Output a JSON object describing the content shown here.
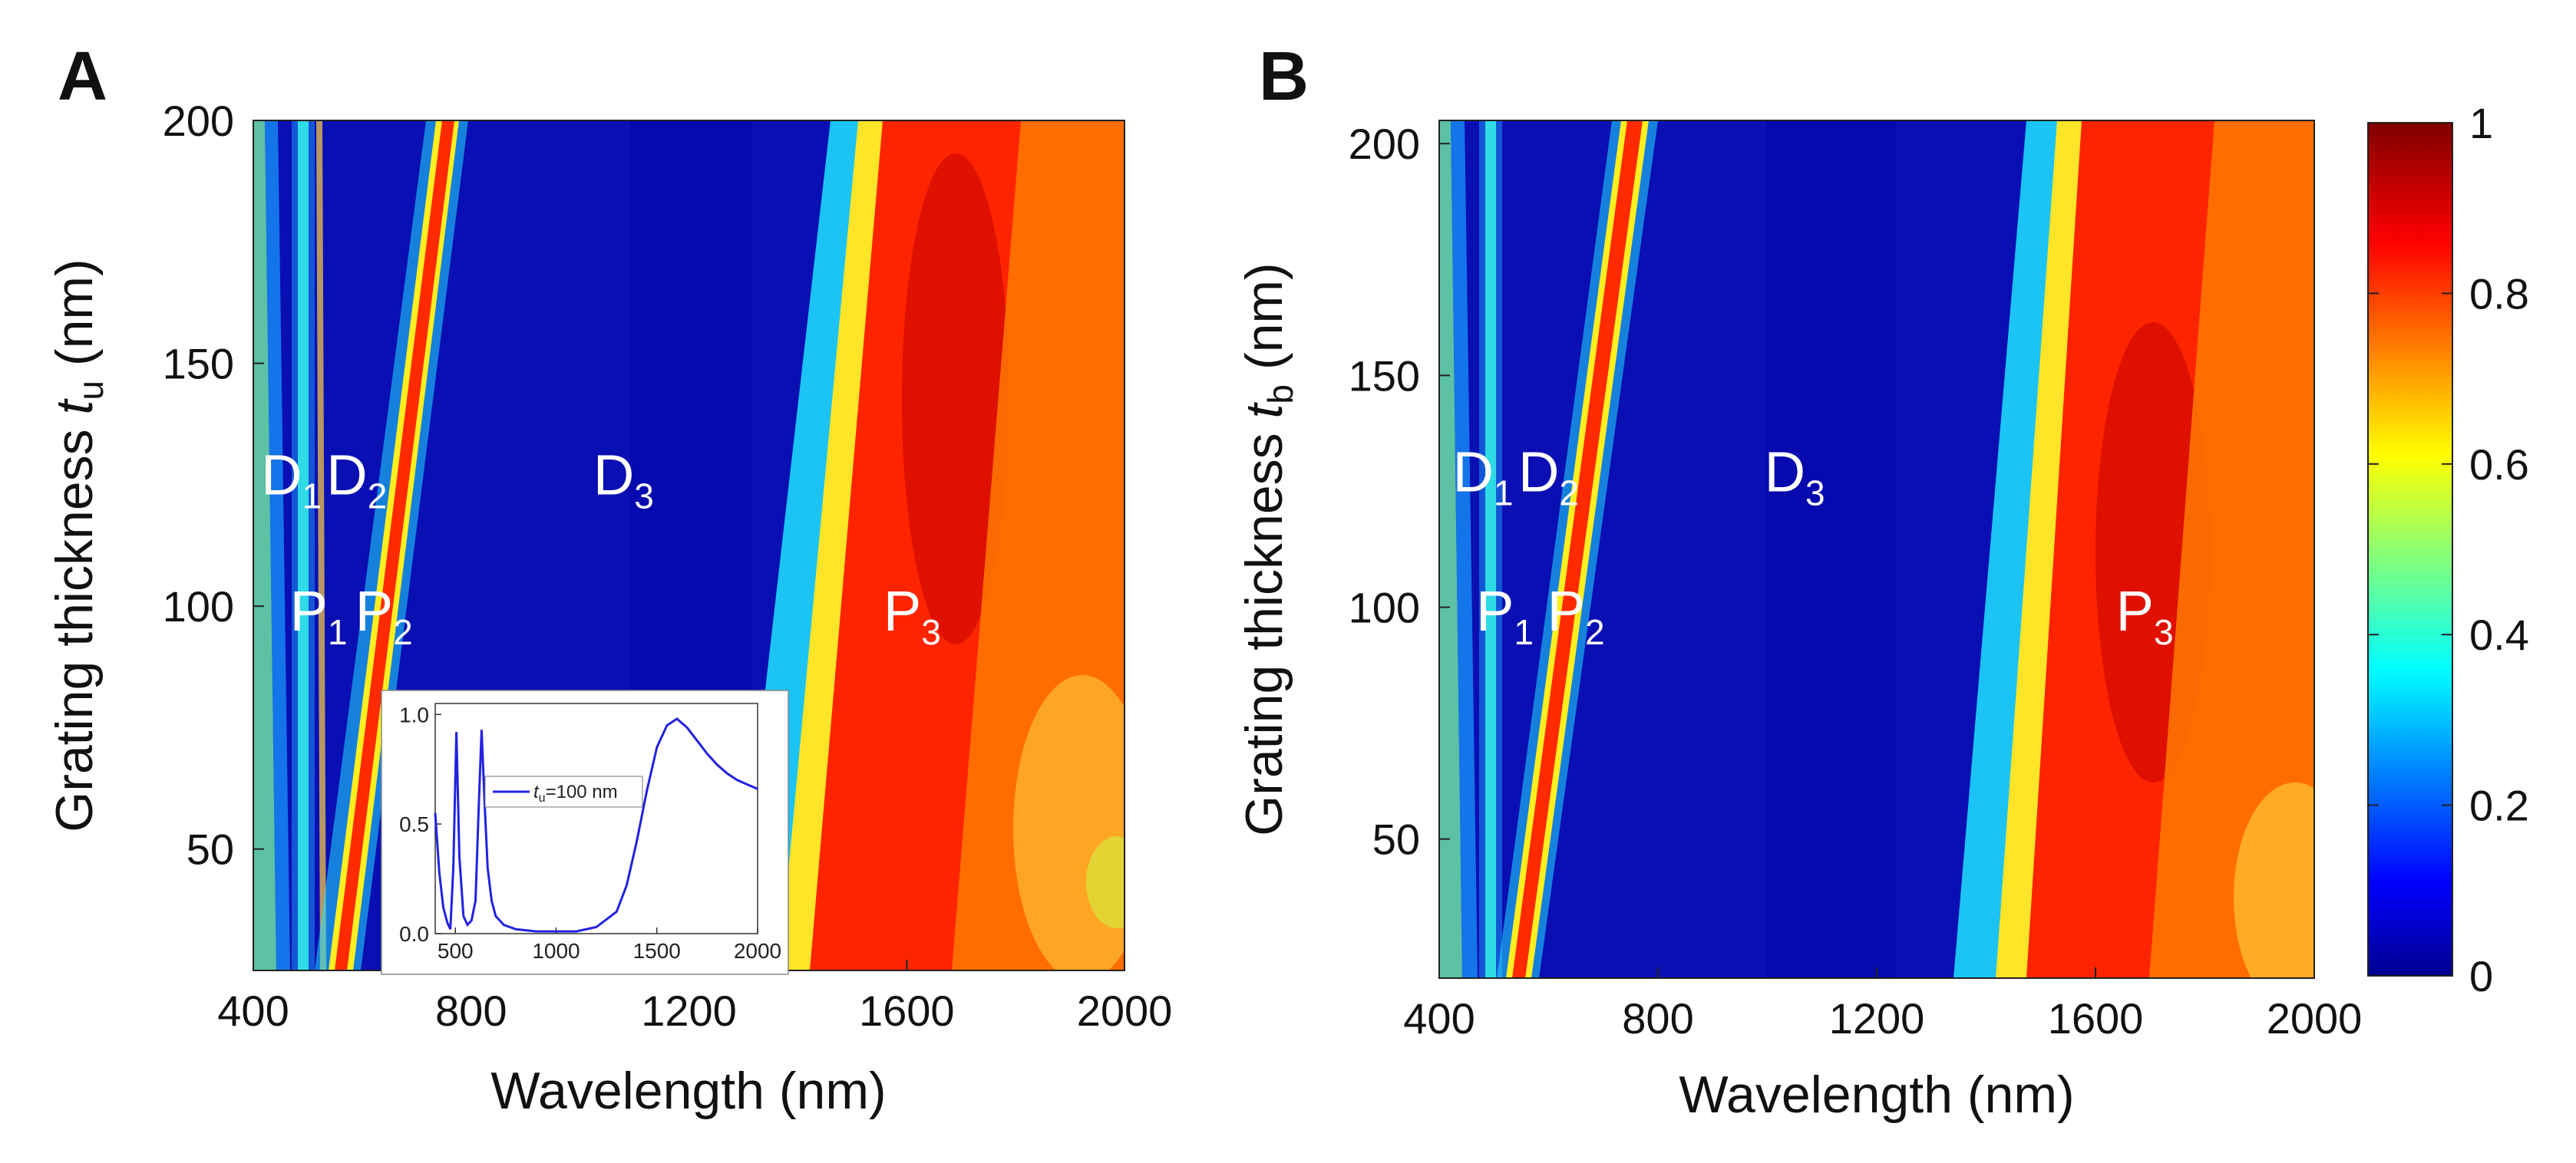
{
  "figure": {
    "panels": [
      "A",
      "B"
    ]
  },
  "colorbar": {
    "ticks": [
      "1",
      "0.8",
      "0.6",
      "0.4",
      "0.2",
      "0"
    ],
    "range": [
      0,
      1
    ],
    "colors": [
      "#00008f",
      "#0000ff",
      "#00ffff",
      "#ffff00",
      "#ff0000",
      "#800000"
    ]
  },
  "chart_data": [
    {
      "type": "heatmap",
      "panel": "A",
      "xlabel": "Wavelength (nm)",
      "ylabel_prefix": "Grating thickness ",
      "ylabel_var": "t",
      "ylabel_sub": "u",
      "ylabel_suffix": " (nm)",
      "xlim": [
        400,
        2000
      ],
      "ylim": [
        25,
        200
      ],
      "xticks": [
        "400",
        "800",
        "1200",
        "1600",
        "2000"
      ],
      "yticks": [
        "200",
        "150",
        "100",
        "50"
      ],
      "ytick_values": [
        200,
        150,
        100,
        50
      ],
      "xtick_values": [
        400,
        800,
        1200,
        1600,
        2000
      ],
      "annotations": [
        {
          "base": "D",
          "sub": "1",
          "x": 470,
          "y": 123
        },
        {
          "base": "D",
          "sub": "2",
          "x": 590,
          "y": 123
        },
        {
          "base": "D",
          "sub": "3",
          "x": 1080,
          "y": 123
        },
        {
          "base": "P",
          "sub": "1",
          "x": 520,
          "y": 95
        },
        {
          "base": "P",
          "sub": "2",
          "x": 640,
          "y": 95
        },
        {
          "base": "P",
          "sub": "3",
          "x": 1610,
          "y": 95
        }
      ],
      "ridges": {
        "edge_band_nm": 420,
        "d1_nm": 480,
        "p2_bottom_nm": 560,
        "p2_top_nm": 770,
        "p3_bottom_edge_nm": 1400,
        "p3_top_edge_nm": 1530
      },
      "inset": {
        "type": "line",
        "legend_prefix": "t",
        "legend_sub": "u",
        "legend_suffix": "=100 nm",
        "xlim": [
          400,
          2000
        ],
        "ylim": [
          0,
          1.05
        ],
        "xticks": [
          "500",
          "1000",
          "1500",
          "2000"
        ],
        "xtick_values": [
          500,
          1000,
          1500,
          2000
        ],
        "yticks": [
          "1.0",
          "0.5",
          "0.0"
        ],
        "ytick_values": [
          1.0,
          0.5,
          0.0
        ],
        "x": [
          400,
          420,
          440,
          460,
          475,
          490,
          505,
          520,
          540,
          560,
          580,
          600,
          615,
          630,
          645,
          660,
          680,
          700,
          740,
          800,
          900,
          1000,
          1100,
          1200,
          1300,
          1350,
          1400,
          1450,
          1500,
          1550,
          1600,
          1650,
          1700,
          1750,
          1800,
          1850,
          1900,
          1950,
          2000
        ],
        "y": [
          0.55,
          0.28,
          0.12,
          0.05,
          0.02,
          0.3,
          0.92,
          0.35,
          0.08,
          0.04,
          0.06,
          0.15,
          0.55,
          0.93,
          0.6,
          0.3,
          0.15,
          0.08,
          0.04,
          0.02,
          0.01,
          0.01,
          0.01,
          0.03,
          0.1,
          0.22,
          0.42,
          0.65,
          0.85,
          0.95,
          0.98,
          0.94,
          0.88,
          0.82,
          0.77,
          0.73,
          0.7,
          0.68,
          0.66
        ]
      }
    },
    {
      "type": "heatmap",
      "panel": "B",
      "xlabel": "Wavelength (nm)",
      "ylabel_prefix": "Grating thickness ",
      "ylabel_var": "t",
      "ylabel_sub": "b",
      "ylabel_suffix": " (nm)",
      "xlim": [
        400,
        2000
      ],
      "ylim": [
        20,
        205
      ],
      "xticks": [
        "400",
        "800",
        "1200",
        "1600",
        "2000"
      ],
      "yticks": [
        "200",
        "150",
        "100",
        "50"
      ],
      "ytick_values": [
        200,
        150,
        100,
        50
      ],
      "xtick_values": [
        400,
        800,
        1200,
        1600,
        2000
      ],
      "annotations": [
        {
          "base": "D",
          "sub": "1",
          "x": 480,
          "y": 125
        },
        {
          "base": "D",
          "sub": "2",
          "x": 600,
          "y": 125
        },
        {
          "base": "D",
          "sub": "3",
          "x": 1050,
          "y": 125
        },
        {
          "base": "P",
          "sub": "1",
          "x": 520,
          "y": 95
        },
        {
          "base": "P",
          "sub": "2",
          "x": 650,
          "y": 95
        },
        {
          "base": "P",
          "sub": "3",
          "x": 1690,
          "y": 95
        }
      ],
      "ridges": {
        "edge_band_nm": 420,
        "d1_nm": 495,
        "p2_bottom_nm": 565,
        "p2_top_nm": 755,
        "p3_bottom_edge_nm": 1420,
        "p3_top_edge_nm": 1560
      }
    }
  ]
}
